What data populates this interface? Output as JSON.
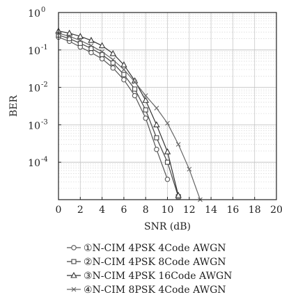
{
  "chart_data": {
    "type": "line",
    "xlabel": "SNR (dB)",
    "ylabel": "BER",
    "xlim": [
      0,
      20
    ],
    "ylim": [
      1e-05,
      1
    ],
    "yscale": "log",
    "grid": true,
    "legend_position": "below",
    "x_ticks": [
      0,
      2,
      4,
      6,
      8,
      10,
      12,
      14,
      16,
      18,
      20
    ],
    "x_tick_labels": [
      "0",
      "2",
      "4",
      "6",
      "8",
      "10",
      "12",
      "14",
      "16",
      "18",
      "20"
    ],
    "y_ticks": [
      1,
      0.1,
      0.01,
      0.001,
      0.0001
    ],
    "y_tick_labels": [
      {
        "base": "10",
        "exp": "0"
      },
      {
        "base": "10",
        "exp": "-1"
      },
      {
        "base": "10",
        "exp": "-2"
      },
      {
        "base": "10",
        "exp": "-3"
      },
      {
        "base": "10",
        "exp": "-4"
      }
    ],
    "series": [
      {
        "name": "①N-CIM 4PSK 4Code AWGN",
        "marker": "circle",
        "color": "#555555",
        "x": [
          0,
          1,
          2,
          3,
          4,
          5,
          6,
          7,
          8,
          9,
          10
        ],
        "y": [
          0.22,
          0.17,
          0.12,
          0.085,
          0.058,
          0.033,
          0.016,
          0.006,
          0.0015,
          0.00022,
          3.5e-05
        ]
      },
      {
        "name": "②N-CIM 4PSK 8Code AWGN",
        "marker": "square",
        "color": "#444444",
        "x": [
          0,
          1,
          2,
          3,
          4,
          5,
          6,
          7,
          8,
          9,
          10,
          11
        ],
        "y": [
          0.25,
          0.2,
          0.15,
          0.11,
          0.075,
          0.045,
          0.022,
          0.009,
          0.0025,
          0.00045,
          0.0001,
          1.2e-05
        ]
      },
      {
        "name": "③N-CIM 4PSK 16Code AWGN",
        "marker": "triangle",
        "color": "#333333",
        "x": [
          0,
          1,
          2,
          3,
          4,
          5,
          6,
          7,
          8,
          9,
          10,
          11
        ],
        "y": [
          0.32,
          0.28,
          0.23,
          0.18,
          0.13,
          0.08,
          0.04,
          0.015,
          0.0045,
          0.001,
          0.00019,
          1.3e-05
        ]
      },
      {
        "name": "④N-CIM 8PSK 4Code AWGN",
        "marker": "cross",
        "color": "#666666",
        "x": [
          0,
          1,
          2,
          3,
          4,
          5,
          6,
          7,
          8,
          9,
          10,
          11,
          12,
          13
        ],
        "y": [
          0.28,
          0.23,
          0.18,
          0.13,
          0.09,
          0.055,
          0.03,
          0.014,
          0.006,
          0.0028,
          0.0011,
          0.0003,
          6.5e-05,
          1e-05
        ]
      }
    ]
  }
}
